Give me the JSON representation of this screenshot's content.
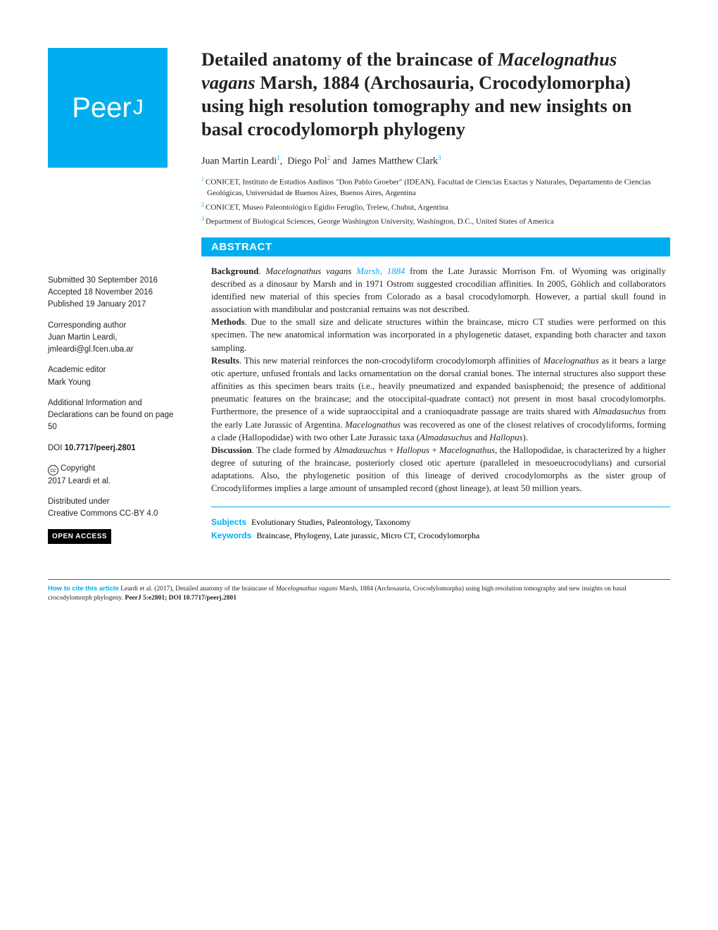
{
  "colors": {
    "accent": "#00aeef",
    "text": "#222222",
    "bg": "#ffffff",
    "black": "#000000"
  },
  "journal": {
    "name": "PeerJ"
  },
  "title": {
    "pre": "Detailed anatomy of the braincase of ",
    "species": "Macelognathus vagans",
    "post": " Marsh, 1884 (Archosauria, Crocodylomorpha) using high resolution tomography and new insights on basal crocodylomorph phylogeny"
  },
  "authors": {
    "a1": {
      "name": "Juan Martin Leardi",
      "aff": "1"
    },
    "a2": {
      "name": "Diego Pol",
      "aff": "2"
    },
    "a3": {
      "name": "James Matthew Clark",
      "aff": "3"
    }
  },
  "affiliations": {
    "1": "CONICET, Instituto de Estudios Andinos \"Don Pablo Groeber\" (IDEAN), Facultad de Ciencias Exactas y Naturales, Departamento de Ciencias Geológicas, Universidad de Buenos Aires, Buenos Aires, Argentina",
    "2": "CONICET, Museo Paleontológico Egidio Feruglio, Trelew, Chubut, Argentina",
    "3": "Department of Biological Sciences, George Washington University, Washington, D.C., United States of America"
  },
  "abstract_label": "ABSTRACT",
  "abstract": {
    "bg_label": "Background",
    "bg_pre": ". ",
    "bg_species": "Macelognathus vagans",
    "bg_cite": "Marsh, 1884",
    "bg_text": " from the Late Jurassic Morrison Fm. of Wyoming was originally described as a dinosaur by Marsh and in 1971 Ostrom suggested crocodilian affinities. In 2005, Göhlich and collaborators identified new material of this species from Colorado as a basal crocodylomorph. However, a partial skull found in association with mandibular and postcranial remains was not described.",
    "methods_label": "Methods",
    "methods_text": ". Due to the small size and delicate structures within the braincase, micro CT studies were performed on this specimen. The new anatomical information was incorporated in a phylogenetic dataset, expanding both character and taxon sampling.",
    "results_label": "Results",
    "results_text_1": ". This new material reinforces the non-crocodyliform crocodylomorph affinities of ",
    "results_sp1": "Macelognathus",
    "results_text_2": " as it bears a large otic aperture, unfused frontals and lacks ornamentation on the dorsal cranial bones. The internal structures also support these affinities as this specimen bears traits (i.e., heavily pneumatized and expanded basisphenoid; the presence of additional pneumatic features on the braincase; and the otoccipital-quadrate contact) not present in most basal crocodylomorphs. Furthermore, the presence of a wide supraoccipital and a cranioquadrate passage are traits shared with ",
    "results_sp2": "Almadasuchus",
    "results_text_3": " from the early Late Jurassic of Argentina. ",
    "results_sp3": "Macelognathus",
    "results_text_4": " was recovered as one of the closest relatives of crocodyliforms, forming a clade (Hallopodidae) with two other Late Jurassic taxa (",
    "results_sp4": "Almadasuchus",
    "results_and": " and ",
    "results_sp5": "Hallopus",
    "results_text_5": ").",
    "disc_label": "Discussion",
    "disc_text_1": ". The clade formed by ",
    "disc_sp1": "Almadasuchus",
    "disc_plus1": " + ",
    "disc_sp2": "Hallopus",
    "disc_plus2": " + ",
    "disc_sp3": "Macelognathus",
    "disc_text_2": ", the Hallopodidae, is characterized by a higher degree of suturing of the braincase, posteriorly closed otic aperture (paralleled in mesoeucrocodylians) and cursorial adaptations. Also, the phylogenetic position of this lineage of derived crocodylomorphs as the sister group of Crocodyliformes implies a large amount of unsampled record (ghost lineage), at least 50 million years."
  },
  "sidebar": {
    "submitted_label": "Submitted",
    "submitted_date": " 30 September 2016",
    "accepted_label": "Accepted",
    "accepted_date": " 18 November 2016",
    "published_label": "Published",
    "published_date": " 19 January 2017",
    "corr_label": "Corresponding author",
    "corr_name": "Juan Martin Leardi,",
    "corr_email": "jmleardi@gl.fcen.uba.ar",
    "editor_label": "Academic editor",
    "editor_name": "Mark Young",
    "addl_label": "Additional Information and Declarations can be found on page 50",
    "doi_label": "DOI",
    "doi_value": " 10.7717/peerj.2801",
    "copyright_label": "Copyright",
    "copyright_holder": "2017 Leardi et al.",
    "dist_label": "Distributed under",
    "dist_license": "Creative Commons CC-BY 4.0",
    "open_access": "OPEN ACCESS"
  },
  "tags": {
    "subjects_label": "Subjects",
    "subjects_text": " Evolutionary Studies, Paleontology, Taxonomy",
    "keywords_label": "Keywords",
    "keywords_text": " Braincase, Phylogeny, Late jurassic, Micro CT, Crocodylomorpha"
  },
  "footer": {
    "label": "How to cite this article",
    "text_pre": " Leardi et al. (2017), Detailed anatomy of the braincase of ",
    "species": "Macelognathus vagans",
    "text_mid": " Marsh, 1884 (Archosauria, Crocodylomorpha) using high resolution tomography and new insights on basal crocodylomorph phylogeny. ",
    "journal": "PeerJ",
    "text_post": " 5:e2801; DOI 10.7717/peerj.2801"
  }
}
